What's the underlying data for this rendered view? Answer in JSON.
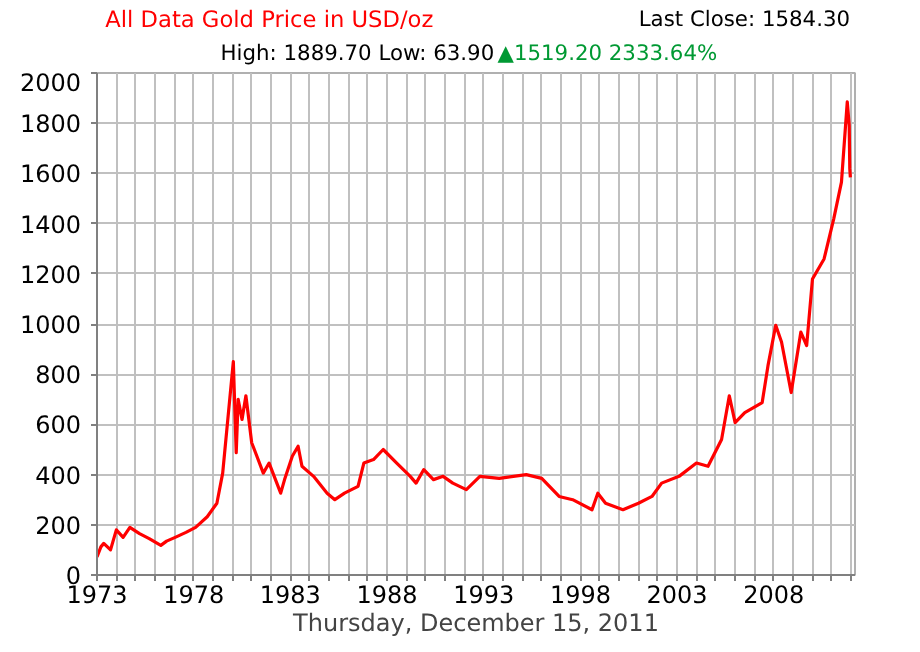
{
  "chart_data": {
    "type": "line",
    "title": "All Data Gold Price in USD/oz",
    "xlabel": "Thursday, December 15, 2011",
    "annotations": [
      "Last Close: 1584.30",
      "High: 1889.70 Low: 63.90",
      "▲1519.20 2333.64%"
    ],
    "x": [
      1973.0,
      1973.2,
      1973.35,
      1973.7,
      1974.0,
      1974.35,
      1974.7,
      1975.2,
      1975.7,
      1976.3,
      1976.6,
      1977.1,
      1977.6,
      1978.1,
      1978.7,
      1979.2,
      1979.5,
      1980.05,
      1980.2,
      1980.3,
      1980.5,
      1980.7,
      1981.0,
      1981.2,
      1981.6,
      1981.9,
      1982.5,
      1982.7,
      1983.1,
      1983.4,
      1983.6,
      1984.2,
      1984.9,
      1985.3,
      1985.8,
      1986.5,
      1986.8,
      1987.3,
      1987.8,
      1988.5,
      1989.2,
      1989.5,
      1989.9,
      1990.4,
      1990.9,
      1991.4,
      1992.1,
      1992.8,
      1993.8,
      1995.2,
      1996.0,
      1996.9,
      1997.6,
      1998.6,
      1998.9,
      1999.3,
      2000.2,
      2001.0,
      2001.7,
      2002.2,
      2003.1,
      2004.0,
      2004.6,
      2005.3,
      2005.7,
      2006.0,
      2006.5,
      2007.4,
      2007.7,
      2008.1,
      2008.4,
      2008.9,
      2009.4,
      2009.7,
      2010.0,
      2010.6,
      2011.1,
      2011.5,
      2011.8,
      2011.9,
      2011.93,
      2011.96
    ],
    "series": [
      {
        "color": "#ff0000",
        "values": [
          72,
          112,
          126,
          100,
          180,
          150,
          190,
          165,
          145,
          118,
          135,
          152,
          170,
          190,
          232,
          286,
          406,
          850,
          487,
          700,
          620,
          714,
          527,
          487,
          406,
          446,
          326,
          380,
          473,
          513,
          433,
          393,
          326,
          300,
          326,
          353,
          446,
          460,
          500,
          446,
          393,
          366,
          420,
          380,
          393,
          366,
          340,
          393,
          385,
          400,
          385,
          313,
          300,
          260,
          326,
          286,
          260,
          286,
          313,
          366,
          393,
          446,
          433,
          540,
          714,
          607,
          647,
          687,
          834,
          995,
          928,
          727,
          968,
          914,
          1179,
          1259,
          1419,
          1565,
          1885,
          1792,
          1619,
          1584
        ]
      }
    ],
    "xlim": [
      1973,
      2012.2
    ],
    "xticks": [
      1973,
      {
        "value": 1974,
        "label": null
      },
      {
        "value": 1975,
        "label": null
      },
      {
        "value": 1976,
        "label": null
      },
      {
        "value": 1977,
        "label": null
      },
      1978,
      {
        "value": 1979,
        "label": null
      },
      {
        "value": 1980,
        "label": null
      },
      {
        "value": 1981,
        "label": null
      },
      {
        "value": 1982,
        "label": null
      },
      1983,
      {
        "value": 1984,
        "label": null
      },
      {
        "value": 1985,
        "label": null
      },
      {
        "value": 1986,
        "label": null
      },
      {
        "value": 1987,
        "label": null
      },
      1988,
      {
        "value": 1989,
        "label": null
      },
      {
        "value": 1990,
        "label": null
      },
      {
        "value": 1991,
        "label": null
      },
      {
        "value": 1992,
        "label": null
      },
      1993,
      {
        "value": 1994,
        "label": null
      },
      {
        "value": 1995,
        "label": null
      },
      {
        "value": 1996,
        "label": null
      },
      {
        "value": 1997,
        "label": null
      },
      1998,
      {
        "value": 1999,
        "label": null
      },
      {
        "value": 2000,
        "label": null
      },
      {
        "value": 2001,
        "label": null
      },
      {
        "value": 2002,
        "label": null
      },
      2003,
      {
        "value": 2004,
        "label": null
      },
      {
        "value": 2005,
        "label": null
      },
      {
        "value": 2006,
        "label": null
      },
      {
        "value": 2007,
        "label": null
      },
      2008,
      {
        "value": 2009,
        "label": null
      },
      {
        "value": 2010,
        "label": null
      },
      {
        "value": 2011,
        "label": null
      },
      {
        "value": 2012,
        "label": null
      }
    ],
    "ylim": [
      0,
      2000
    ],
    "yticks": [
      0,
      200,
      400,
      600,
      800,
      1000,
      1200,
      1400,
      1600,
      1800,
      2000
    ],
    "grid": true,
    "marker": "none",
    "line_style": "solid"
  }
}
